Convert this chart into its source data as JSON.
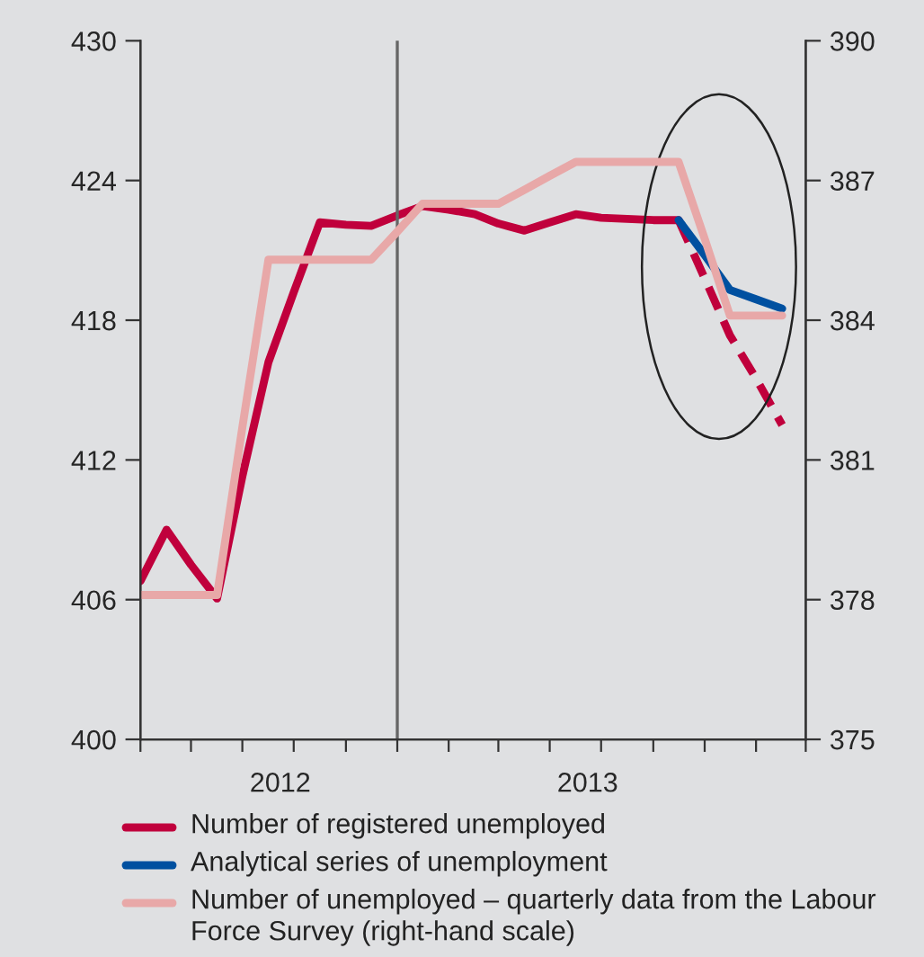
{
  "chart_data": {
    "type": "line",
    "x": [
      "2012-01",
      "2012-02",
      "2012-03",
      "2012-04",
      "2012-05",
      "2012-06",
      "2012-07",
      "2012-08",
      "2012-09",
      "2012-10",
      "2012-11",
      "2012-12",
      "2013-01",
      "2013-02",
      "2013-03",
      "2013-04",
      "2013-05",
      "2013-06",
      "2013-07",
      "2013-08",
      "2013-09",
      "2013-10",
      "2013-11",
      "2013-12",
      "2014-01",
      "2014-02"
    ],
    "series": [
      {
        "name": "Number of registered unemployed",
        "color": "#c0003c",
        "values": [
          406.8,
          409.0,
          407.5,
          406.05,
          411.3,
          416.2,
          419.2,
          422.2,
          422.1,
          422.05,
          422.5,
          422.9,
          422.75,
          422.55,
          422.15,
          421.85,
          422.2,
          422.55,
          422.4,
          422.35,
          422.3,
          422.3,
          null,
          null,
          null,
          null
        ]
      },
      {
        "color": "#c0003c",
        "line_style": "dashed",
        "values": [
          null,
          null,
          null,
          null,
          null,
          null,
          null,
          null,
          null,
          null,
          null,
          null,
          null,
          null,
          null,
          null,
          null,
          null,
          null,
          null,
          null,
          422.3,
          419.8,
          417.35,
          415.5,
          413.5
        ]
      },
      {
        "name": "Analytical series of unemployment",
        "color": "#0050a0",
        "values": [
          null,
          null,
          null,
          null,
          null,
          null,
          null,
          null,
          null,
          null,
          null,
          null,
          null,
          null,
          null,
          null,
          null,
          null,
          null,
          null,
          null,
          422.3,
          420.8,
          419.3,
          418.9,
          418.5
        ]
      },
      {
        "name": "Number of unemployed – quarterly data from the Labour Force Survey (right-hand scale)",
        "color": "#e8a8a8",
        "axis": "y2",
        "values": [
          378.1,
          378.1,
          378.1,
          378.1,
          381.7,
          385.3,
          385.3,
          385.3,
          385.3,
          385.3,
          385.9,
          386.5,
          386.5,
          386.5,
          386.5,
          386.8,
          387.1,
          387.4,
          387.4,
          387.4,
          387.4,
          387.4,
          385.75,
          384.1,
          384.1,
          384.1
        ]
      }
    ],
    "xlim": [
      "2012-01",
      "2014-03"
    ],
    "xticks": [
      {
        "value": "2012-01",
        "label": null
      },
      {
        "value": "2012-03",
        "label": null
      },
      {
        "value": "2012-05",
        "label": null
      },
      {
        "value": "2012-06-15",
        "label": "2012"
      },
      {
        "value": "2012-07",
        "label": null
      },
      {
        "value": "2012-09",
        "label": null
      },
      {
        "value": "2012-11",
        "label": null
      },
      {
        "value": "2013-01",
        "label": null
      },
      {
        "value": "2013-03",
        "label": null
      },
      {
        "value": "2013-05",
        "label": null
      },
      {
        "value": "2013-06-15",
        "label": "2013"
      },
      {
        "value": "2013-07",
        "label": null
      },
      {
        "value": "2013-09",
        "label": null
      },
      {
        "value": "2013-11",
        "label": null
      },
      {
        "value": "2014-01",
        "label": null
      },
      {
        "value": "2014-03",
        "label": null
      }
    ],
    "ylim": [
      400,
      430
    ],
    "yticks": [
      400,
      406,
      412,
      418,
      424,
      430
    ],
    "y2lim": [
      375,
      390
    ],
    "y2ticks": [
      375,
      378,
      381,
      384,
      387,
      390
    ],
    "ref_lines": [
      {
        "axis": "x",
        "value": "2012-11",
        "color": "#666666"
      }
    ],
    "legend": "bottom",
    "grid": false,
    "marker": "none",
    "line_style": "solid"
  }
}
